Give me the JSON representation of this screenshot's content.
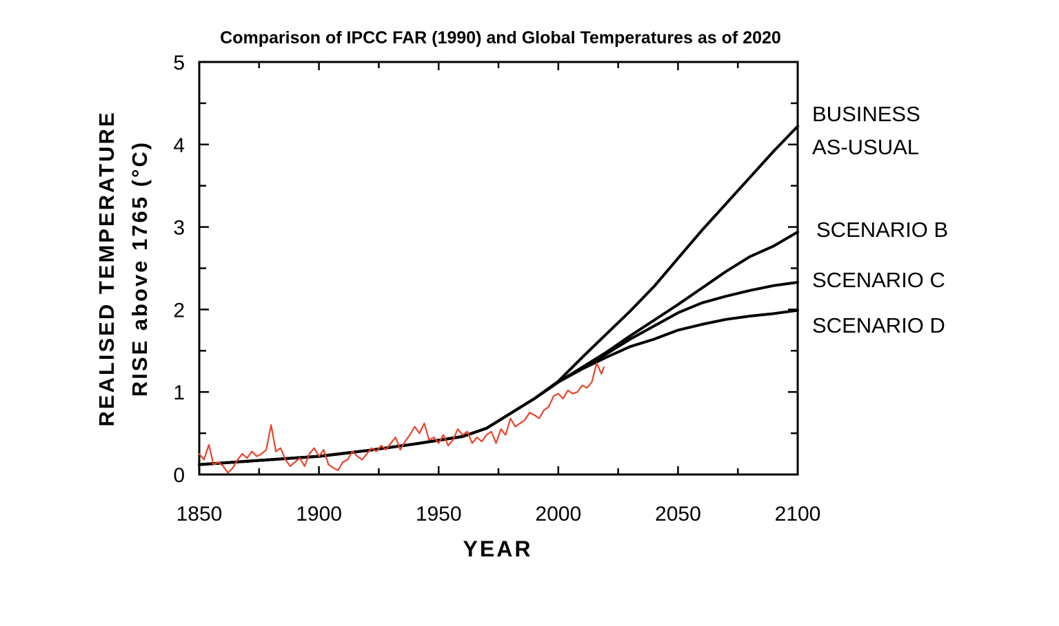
{
  "chart_data": {
    "type": "line",
    "title": "Comparison of IPCC FAR (1990) and Global Temperatures as of 2020",
    "xlabel": "YEAR",
    "ylabel_line1": "REALISED  TEMPERATURE",
    "ylabel_line2": "RISE above 1765 (°C)",
    "xlim": [
      1850,
      2100
    ],
    "ylim": [
      0,
      5
    ],
    "x_ticks": [
      "1850",
      "1900",
      "1950",
      "2000",
      "2050",
      "2100"
    ],
    "y_ticks": [
      "0",
      "1",
      "2",
      "3",
      "4",
      "5"
    ],
    "grid": false,
    "legend_placement": "right of plot, labels at series ends",
    "series": [
      {
        "name": "BUSINESS AS-USUAL",
        "label_lines": [
          "BUSINESS",
          "AS-USUAL"
        ],
        "color": "#000000",
        "x": [
          1850,
          1880,
          1900,
          1920,
          1940,
          1960,
          1970,
          1980,
          1990,
          2000,
          2010,
          2020,
          2030,
          2040,
          2050,
          2060,
          2070,
          2080,
          2090,
          2100
        ],
        "y": [
          0.12,
          0.18,
          0.22,
          0.29,
          0.37,
          0.46,
          0.56,
          0.74,
          0.92,
          1.13,
          1.42,
          1.7,
          1.98,
          2.28,
          2.62,
          2.96,
          3.28,
          3.6,
          3.92,
          4.22
        ]
      },
      {
        "name": "SCENARIO B",
        "color": "#000000",
        "x": [
          1850,
          1880,
          1900,
          1920,
          1940,
          1960,
          1970,
          1980,
          1990,
          2000,
          2010,
          2020,
          2030,
          2040,
          2050,
          2060,
          2070,
          2080,
          2090,
          2100
        ],
        "y": [
          0.12,
          0.18,
          0.22,
          0.29,
          0.37,
          0.46,
          0.56,
          0.74,
          0.92,
          1.12,
          1.3,
          1.48,
          1.68,
          1.87,
          2.06,
          2.26,
          2.46,
          2.64,
          2.77,
          2.94
        ]
      },
      {
        "name": "SCENARIO C",
        "color": "#000000",
        "x": [
          1850,
          1880,
          1900,
          1920,
          1940,
          1960,
          1970,
          1980,
          1990,
          2000,
          2010,
          2020,
          2030,
          2040,
          2050,
          2060,
          2070,
          2080,
          2090,
          2100
        ],
        "y": [
          0.12,
          0.18,
          0.22,
          0.29,
          0.37,
          0.46,
          0.56,
          0.74,
          0.92,
          1.12,
          1.29,
          1.46,
          1.64,
          1.8,
          1.96,
          2.08,
          2.16,
          2.23,
          2.29,
          2.33
        ]
      },
      {
        "name": "SCENARIO D",
        "color": "#000000",
        "x": [
          1850,
          1880,
          1900,
          1920,
          1940,
          1960,
          1970,
          1980,
          1990,
          2000,
          2010,
          2020,
          2030,
          2040,
          2050,
          2060,
          2070,
          2080,
          2090,
          2100
        ],
        "y": [
          0.12,
          0.18,
          0.22,
          0.29,
          0.37,
          0.46,
          0.56,
          0.74,
          0.92,
          1.12,
          1.28,
          1.42,
          1.55,
          1.64,
          1.75,
          1.82,
          1.88,
          1.92,
          1.95,
          1.99
        ]
      },
      {
        "color": "#e8432a",
        "x": [
          1850,
          1852,
          1854,
          1856,
          1858,
          1860,
          1862,
          1864,
          1866,
          1868,
          1870,
          1872,
          1874,
          1876,
          1878,
          1880,
          1882,
          1884,
          1886,
          1888,
          1890,
          1892,
          1894,
          1896,
          1898,
          1900,
          1902,
          1904,
          1906,
          1908,
          1910,
          1912,
          1914,
          1916,
          1918,
          1920,
          1922,
          1924,
          1926,
          1928,
          1930,
          1932,
          1934,
          1936,
          1938,
          1940,
          1942,
          1944,
          1946,
          1948,
          1950,
          1952,
          1954,
          1956,
          1958,
          1960,
          1962,
          1964,
          1966,
          1968,
          1970,
          1972,
          1974,
          1976,
          1978,
          1980,
          1982,
          1984,
          1986,
          1988,
          1990,
          1992,
          1994,
          1996,
          1998,
          2000,
          2002,
          2004,
          2006,
          2008,
          2010,
          2012,
          2014,
          2016,
          2018,
          2019
        ],
        "y": [
          0.25,
          0.18,
          0.36,
          0.12,
          0.15,
          0.1,
          0.02,
          0.08,
          0.18,
          0.25,
          0.2,
          0.28,
          0.22,
          0.25,
          0.3,
          0.6,
          0.28,
          0.32,
          0.18,
          0.1,
          0.15,
          0.2,
          0.1,
          0.25,
          0.32,
          0.22,
          0.3,
          0.12,
          0.08,
          0.05,
          0.15,
          0.18,
          0.28,
          0.22,
          0.18,
          0.25,
          0.32,
          0.28,
          0.35,
          0.3,
          0.38,
          0.45,
          0.3,
          0.4,
          0.48,
          0.58,
          0.5,
          0.62,
          0.42,
          0.45,
          0.38,
          0.48,
          0.35,
          0.42,
          0.55,
          0.48,
          0.52,
          0.38,
          0.45,
          0.4,
          0.48,
          0.52,
          0.38,
          0.55,
          0.48,
          0.68,
          0.58,
          0.62,
          0.66,
          0.75,
          0.72,
          0.68,
          0.78,
          0.82,
          0.95,
          0.98,
          0.92,
          1.02,
          0.98,
          1.0,
          1.08,
          1.05,
          1.12,
          1.35,
          1.22,
          1.3
        ]
      }
    ]
  }
}
